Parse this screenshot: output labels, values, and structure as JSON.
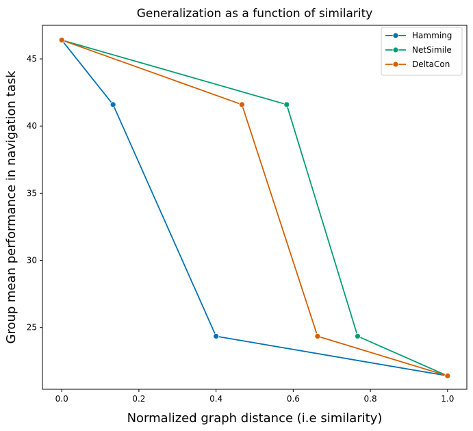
{
  "chart_data": {
    "type": "line",
    "title": "Generalization as a function of similarity",
    "xlabel": "Normalized graph distance (i.e similarity)",
    "ylabel": "Group mean performance in navigation task",
    "xlim": [
      -0.05,
      1.05
    ],
    "ylim": [
      20.4,
      47.5
    ],
    "xticks": [
      0.0,
      0.2,
      0.4,
      0.6,
      0.8,
      1.0
    ],
    "xtick_labels": [
      "0.0",
      "0.2",
      "0.4",
      "0.6",
      "0.8",
      "1.0"
    ],
    "yticks": [
      25,
      30,
      35,
      40,
      45
    ],
    "ytick_labels": [
      "25",
      "30",
      "35",
      "40",
      "45"
    ],
    "grid": false,
    "legend_position": "top-right",
    "series": [
      {
        "name": "Hamming",
        "color": "#0173b2",
        "x": [
          0.0,
          0.133,
          0.4,
          1.0
        ],
        "y": [
          46.4,
          41.6,
          24.35,
          21.4
        ]
      },
      {
        "name": "NetSimile",
        "color": "#029e73",
        "x": [
          0.0,
          0.583,
          0.767,
          1.0
        ],
        "y": [
          46.4,
          41.6,
          24.35,
          21.4
        ]
      },
      {
        "name": "DeltaCon",
        "color": "#d55e00",
        "x": [
          0.0,
          0.467,
          0.663,
          1.0
        ],
        "y": [
          46.4,
          41.6,
          24.35,
          21.4
        ]
      }
    ]
  }
}
